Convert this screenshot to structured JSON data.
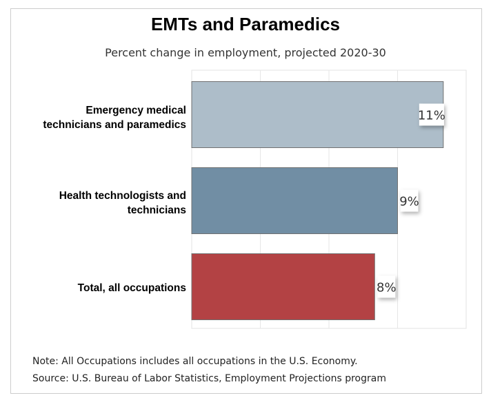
{
  "chart_data": {
    "type": "bar",
    "orientation": "horizontal",
    "title": "EMTs and Paramedics",
    "subtitle": "Percent change in employment, projected 2020-30",
    "categories": [
      "Emergency medical technicians and paramedics",
      "Health technologists and technicians",
      "Total, all occupations"
    ],
    "category_lines": [
      [
        "Emergency medical",
        "technicians and paramedics"
      ],
      [
        "Health technologists and",
        "technicians"
      ],
      [
        "Total, all occupations"
      ]
    ],
    "values": [
      11,
      9,
      8
    ],
    "data_labels": [
      "11%",
      "9%",
      "8%"
    ],
    "colors": [
      "#adbdc9",
      "#718ea4",
      "#b34244"
    ],
    "xlim": [
      0,
      12
    ],
    "grid_step": 3,
    "grid": true,
    "xlabel": "",
    "ylabel": ""
  },
  "footer": {
    "note": "Note: All Occupations includes all occupations in the U.S. Economy.",
    "source": "Source: U.S. Bureau of Labor Statistics, Employment Projections program"
  }
}
